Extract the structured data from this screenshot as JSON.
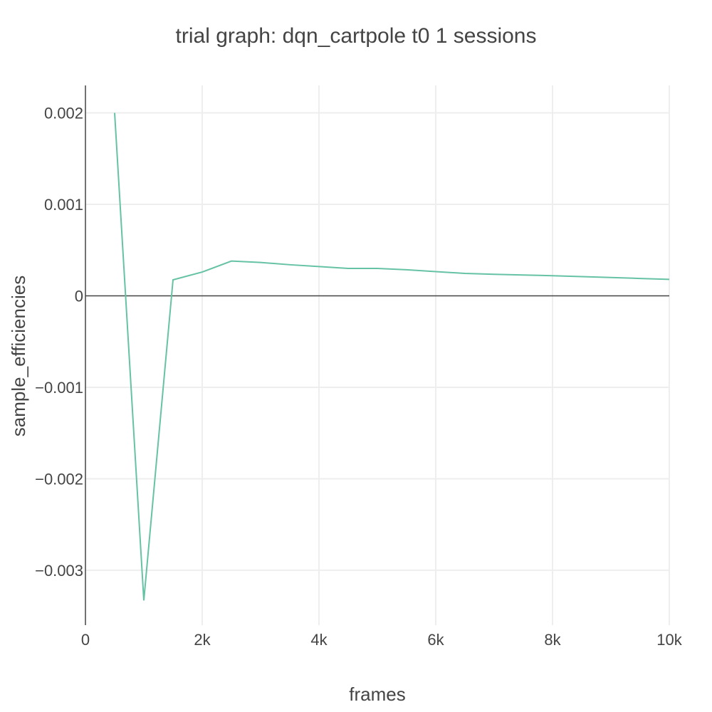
{
  "chart_data": {
    "type": "line",
    "title": "trial graph: dqn_cartpole t0 1 sessions",
    "xlabel": "frames",
    "ylabel": "sample_efficiencies",
    "xlim": [
      0,
      10000
    ],
    "ylim": [
      -0.0036,
      0.0023
    ],
    "grid": true,
    "x_ticks": [
      {
        "value": 0,
        "label": "0"
      },
      {
        "value": 2000,
        "label": "2k"
      },
      {
        "value": 4000,
        "label": "4k"
      },
      {
        "value": 6000,
        "label": "6k"
      },
      {
        "value": 8000,
        "label": "8k"
      },
      {
        "value": 10000,
        "label": "10k"
      }
    ],
    "y_ticks": [
      {
        "value": 0.002,
        "label": "0.002"
      },
      {
        "value": 0.001,
        "label": "0.001"
      },
      {
        "value": 0,
        "label": "0"
      },
      {
        "value": -0.001,
        "label": "−0.001"
      },
      {
        "value": -0.002,
        "label": "−0.002"
      },
      {
        "value": -0.003,
        "label": "−0.003"
      }
    ],
    "series": [
      {
        "color": "#66c2a5",
        "x": [
          500,
          1000,
          1500,
          2000,
          2500,
          3000,
          3500,
          4000,
          4500,
          5000,
          5500,
          6000,
          6500,
          7000,
          7500,
          8000,
          8500,
          9000,
          9500,
          10000
        ],
        "y": [
          0.002,
          -0.00333,
          0.000175,
          0.00026,
          0.00038,
          0.000365,
          0.00034,
          0.00032,
          0.0003,
          0.0003,
          0.000285,
          0.000265,
          0.000245,
          0.000235,
          0.000228,
          0.00022,
          0.00021,
          0.0002,
          0.00019,
          0.00018
        ]
      }
    ]
  }
}
